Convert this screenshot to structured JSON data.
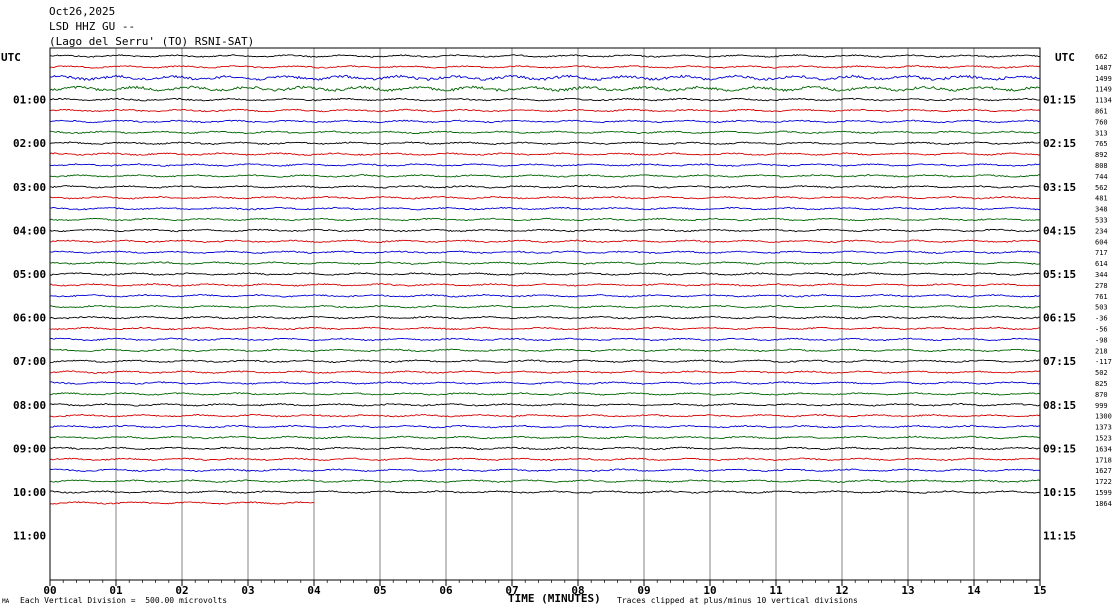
{
  "header": {
    "date": "Oct26,2025",
    "station": "LSD HHZ GU --",
    "location": "(Lago del Serru' (TO) RSNI-SAT)"
  },
  "chart_data": {
    "type": "line",
    "title": "Oct26,2025",
    "xlabel": "TIME (MINUTES)",
    "x_range": [
      0,
      15
    ],
    "x_ticks": [
      "00",
      "01",
      "02",
      "03",
      "04",
      "05",
      "06",
      "07",
      "08",
      "09",
      "10",
      "11",
      "12",
      "13",
      "14",
      "15"
    ],
    "left_axis_label": "UTC",
    "right_axis_label": "UTC",
    "left_hour_labels": [
      "01:00",
      "02:00",
      "03:00",
      "04:00",
      "05:00",
      "06:00",
      "07:00",
      "08:00",
      "09:00",
      "10:00",
      "11:00"
    ],
    "right_hour_labels": [
      "01:15",
      "02:15",
      "03:15",
      "04:15",
      "05:15",
      "06:15",
      "07:15",
      "08:15",
      "09:15",
      "10:15",
      "11:15"
    ],
    "first_right_value": "662",
    "trace_colors": [
      "#000000",
      "#d40000",
      "#0000d4",
      "#006400"
    ],
    "traces_per_hour": 4,
    "minutes_per_trace": 15,
    "last_trace_end_minute": 4,
    "right_values": [
      "662",
      "1487",
      "1499",
      "1149",
      "1134",
      "861",
      "760",
      "313",
      "765",
      "892",
      "808",
      "744",
      "562",
      "481",
      "348",
      "533",
      "234",
      "604",
      "717",
      "614",
      "344",
      "278",
      "761",
      "503",
      "-36",
      "-56",
      "-98",
      "218",
      "-117",
      "502",
      "825",
      "870",
      "999",
      "1300",
      "1373",
      "1523",
      "1634",
      "1718",
      "1627",
      "1722",
      "1599",
      "1864"
    ]
  },
  "footer": {
    "left_mark": "MA",
    "scale_text": "Each Vertical Division =  500.00 microvolts",
    "clip_text": "Traces clipped at plus/minus 10 vertical divisions"
  }
}
